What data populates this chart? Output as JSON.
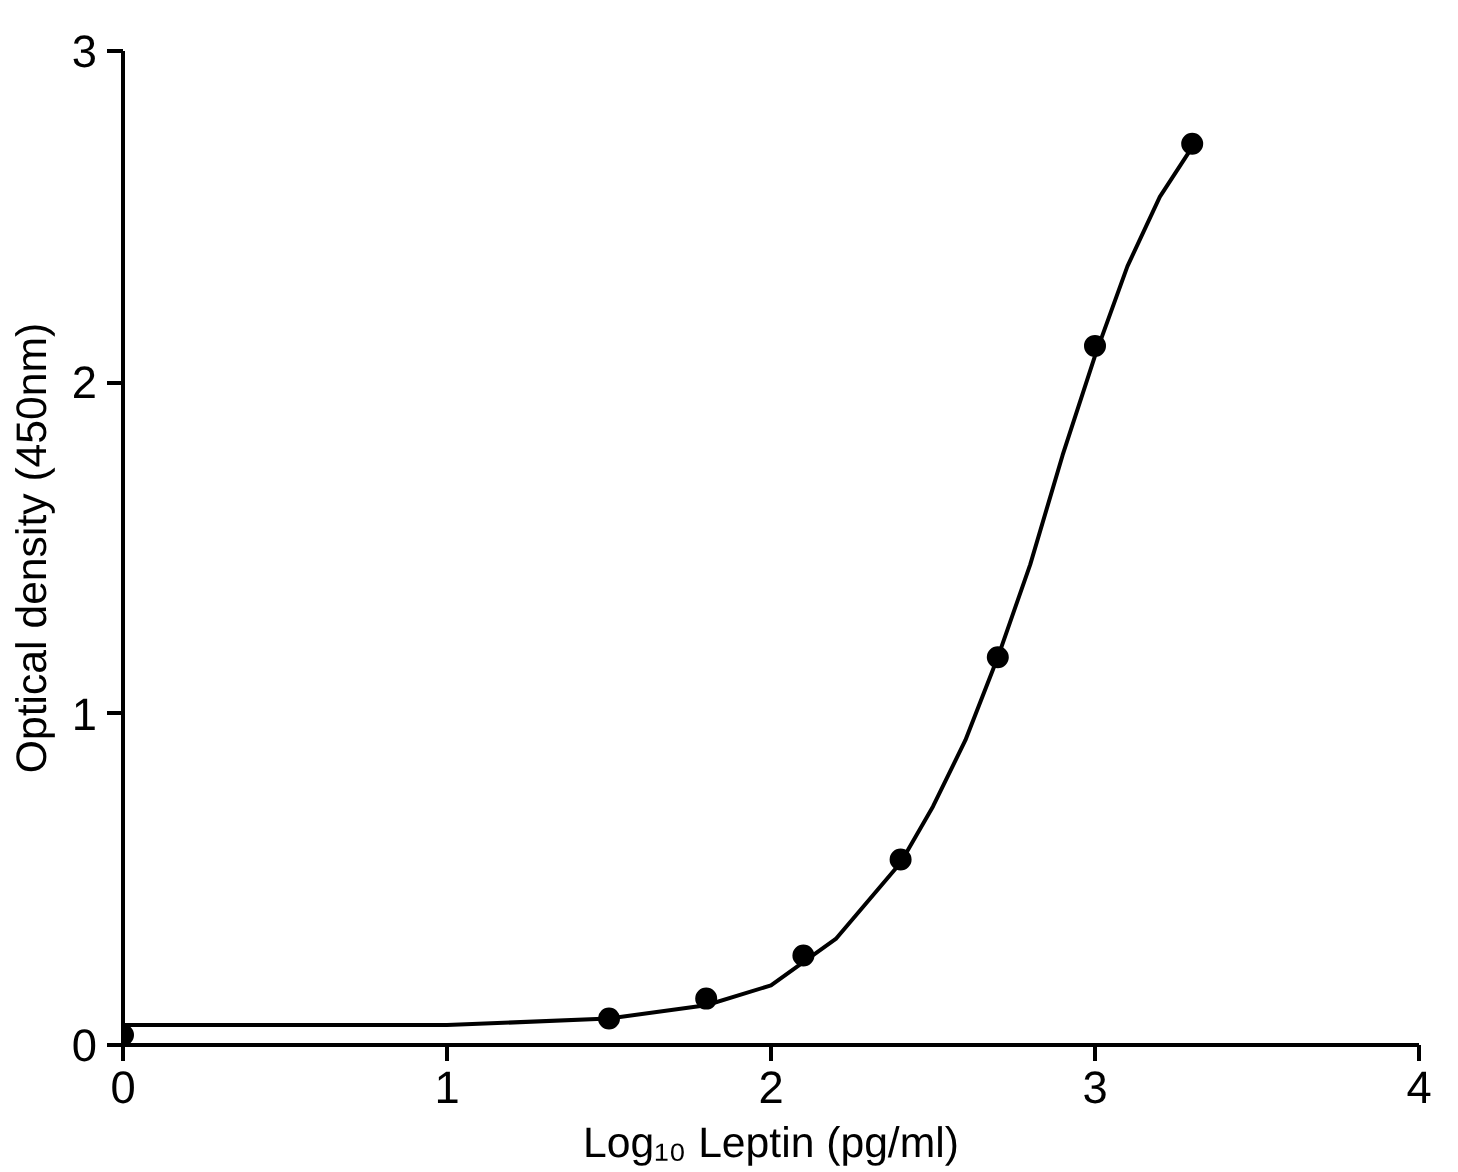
{
  "chart_data": {
    "type": "scatter",
    "xlabel": "Log₁₀ Leptin (pg/ml)",
    "ylabel": "Optical density (450nm)",
    "xlim": [
      0,
      4
    ],
    "ylim": [
      0,
      3
    ],
    "xticks": [
      0,
      1,
      2,
      3,
      4
    ],
    "yticks": [
      0,
      1,
      2,
      3
    ],
    "grid": false,
    "series": [
      {
        "marker": "circle",
        "color": "#000000",
        "x": [
          0,
          1.5,
          1.8,
          2.1,
          2.4,
          2.7,
          3.0,
          3.3
        ],
        "values": [
          0.03,
          0.08,
          0.14,
          0.27,
          0.56,
          1.17,
          2.11,
          2.72
        ]
      },
      {
        "type": "line",
        "marker": "none",
        "line_style": "solid",
        "color": "#000000",
        "x": [
          0,
          0.5,
          1.0,
          1.5,
          1.8,
          2.0,
          2.2,
          2.4,
          2.5,
          2.6,
          2.7,
          2.8,
          2.9,
          3.0,
          3.1,
          3.2,
          3.3
        ],
        "values": [
          0.06,
          0.06,
          0.06,
          0.08,
          0.12,
          0.18,
          0.32,
          0.55,
          0.72,
          0.92,
          1.17,
          1.45,
          1.78,
          2.08,
          2.35,
          2.56,
          2.71
        ]
      }
    ]
  }
}
